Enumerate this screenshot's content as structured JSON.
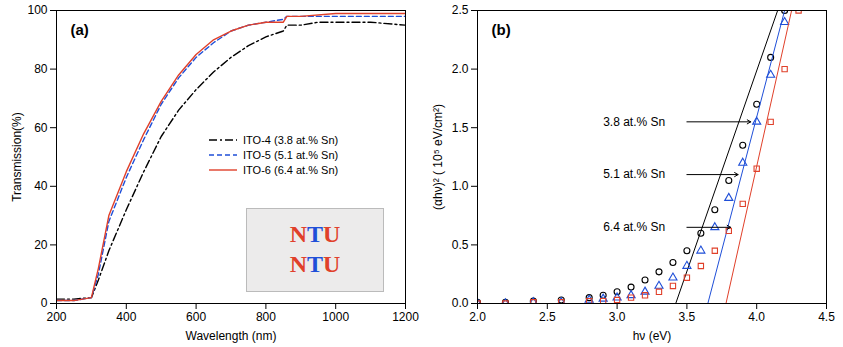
{
  "chart_data": [
    {
      "type": "line",
      "title": "(a)",
      "x_label": "Wavelength (nm)",
      "y_label": "Transmission(%)",
      "xlim": [
        200,
        1200
      ],
      "xticks": [
        200,
        400,
        600,
        800,
        1000,
        1200
      ],
      "ylim": [
        0,
        100
      ],
      "yticks": [
        0,
        20,
        40,
        60,
        80,
        100
      ],
      "legend": "lower right",
      "inset_text": [
        "NTU",
        "NTU"
      ],
      "series": [
        {
          "name": "ITO-4 (3.8 at.% Sn)",
          "color": "#000000",
          "line_style": "dashdot",
          "x": [
            200,
            250,
            300,
            320,
            350,
            400,
            450,
            500,
            550,
            600,
            650,
            700,
            750,
            800,
            850,
            860,
            900,
            950,
            1000,
            1100,
            1200
          ],
          "values": [
            1.5,
            1.5,
            2,
            8,
            18,
            32,
            45,
            57,
            66,
            73,
            79,
            84,
            88,
            91,
            93,
            95,
            95,
            96,
            96,
            96,
            95
          ]
        },
        {
          "name": "ITO-5 (5.1 at.% Sn)",
          "color": "#1f4fd8",
          "line_style": "dashed",
          "x": [
            200,
            250,
            300,
            320,
            350,
            400,
            450,
            500,
            550,
            600,
            650,
            700,
            750,
            800,
            850,
            860,
            900,
            1000,
            1100,
            1200
          ],
          "values": [
            1,
            1,
            2,
            10,
            28,
            43,
            56,
            68,
            77,
            84,
            89,
            93,
            95,
            96,
            97,
            98,
            98,
            98,
            98,
            98
          ]
        },
        {
          "name": "ITO-6 (6.4 at.% Sn)",
          "color": "#e0402a",
          "line_style": "solid",
          "x": [
            200,
            250,
            300,
            320,
            350,
            400,
            450,
            500,
            550,
            600,
            650,
            700,
            750,
            800,
            850,
            860,
            900,
            1000,
            1100,
            1200
          ],
          "values": [
            1,
            1,
            2,
            12,
            30,
            45,
            58,
            69,
            78,
            85,
            90,
            93,
            95,
            96,
            96,
            98,
            98,
            99,
            99,
            99
          ]
        }
      ]
    },
    {
      "type": "scatter",
      "title": "(b)",
      "x_label": "hν (eV)",
      "y_label": "(αhν)² ( 10⁵ eV/cm²)",
      "xlim": [
        2.0,
        4.5
      ],
      "xticks": [
        {
          "value": 2,
          "label": "2.0"
        },
        2.5,
        {
          "value": 3,
          "label": "3.0"
        },
        3.5,
        {
          "value": 4,
          "label": "4.0"
        },
        4.5
      ],
      "ylim": [
        0,
        2.5
      ],
      "yticks": [
        {
          "value": 0,
          "label": "0.0"
        },
        0.5,
        {
          "value": 1,
          "label": "1.0"
        },
        1.5,
        {
          "value": 2,
          "label": "2.0"
        },
        2.5
      ],
      "series": [
        {
          "name": "3.8 at.% Sn",
          "color": "#000000",
          "marker": "circle",
          "x": [
            2.0,
            2.2,
            2.4,
            2.6,
            2.8,
            2.9,
            3.0,
            3.1,
            3.2,
            3.3,
            3.4,
            3.5,
            3.6,
            3.7,
            3.8,
            3.9,
            4.0,
            4.1,
            4.2
          ],
          "values": [
            0.01,
            0.01,
            0.02,
            0.03,
            0.05,
            0.07,
            0.1,
            0.14,
            0.2,
            0.27,
            0.35,
            0.45,
            0.6,
            0.8,
            1.05,
            1.35,
            1.7,
            2.1,
            2.5
          ],
          "tangent_x": [
            3.42,
            4.15
          ],
          "tangent_values": [
            0,
            2.5
          ]
        },
        {
          "name": "5.1 at.% Sn",
          "color": "#1f4fd8",
          "marker": "triangle",
          "x": [
            2.0,
            2.2,
            2.4,
            2.6,
            2.8,
            2.9,
            3.0,
            3.1,
            3.2,
            3.3,
            3.4,
            3.5,
            3.6,
            3.7,
            3.8,
            3.9,
            4.0,
            4.1,
            4.2
          ],
          "values": [
            0,
            0,
            0.01,
            0.01,
            0.03,
            0.04,
            0.05,
            0.07,
            0.1,
            0.15,
            0.22,
            0.32,
            0.45,
            0.65,
            0.9,
            1.2,
            1.55,
            1.95,
            2.4
          ],
          "tangent_x": [
            3.65,
            4.2
          ],
          "tangent_values": [
            0,
            2.5
          ]
        },
        {
          "name": "6.4 at.% Sn",
          "color": "#e0402a",
          "marker": "square",
          "x": [
            2.0,
            2.2,
            2.4,
            2.6,
            2.8,
            2.9,
            3.0,
            3.1,
            3.2,
            3.3,
            3.4,
            3.5,
            3.6,
            3.7,
            3.8,
            3.9,
            4.0,
            4.1,
            4.2,
            4.3
          ],
          "values": [
            0,
            0,
            0.01,
            0.01,
            0.02,
            0.02,
            0.03,
            0.05,
            0.07,
            0.1,
            0.15,
            0.22,
            0.32,
            0.45,
            0.62,
            0.85,
            1.15,
            1.55,
            2.0,
            2.5
          ],
          "tangent_x": [
            3.78,
            4.25
          ],
          "tangent_values": [
            0,
            2.5
          ]
        }
      ]
    }
  ]
}
